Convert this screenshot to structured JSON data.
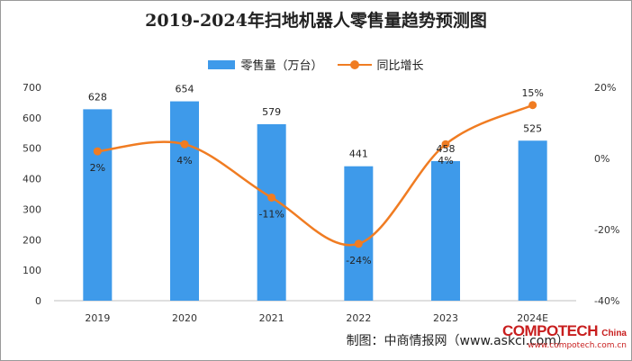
{
  "chart_data": {
    "type": "bar",
    "title": "2019-2024年扫地机器人零售量趋势预测图",
    "categories": [
      "2019",
      "2020",
      "2021",
      "2022",
      "2023",
      "2024E"
    ],
    "series": [
      {
        "name": "零售量（万台）",
        "type": "bar",
        "axis": "left",
        "values": [
          628,
          654,
          579,
          441,
          458,
          525
        ],
        "labels": [
          "628",
          "654",
          "579",
          "441",
          "458",
          "525"
        ]
      },
      {
        "name": "同比增长",
        "type": "line",
        "axis": "right",
        "values": [
          2,
          4,
          -11,
          -24,
          4,
          15
        ],
        "labels": [
          "2%",
          "4%",
          "-11%",
          "-24%",
          "4%",
          "15%"
        ]
      }
    ],
    "ylim_left": [
      0,
      700
    ],
    "yticks_left": [
      "0",
      "100",
      "200",
      "300",
      "400",
      "500",
      "600",
      "700"
    ],
    "ylim_right": [
      -40,
      20
    ],
    "yticks_right": [
      "-40%",
      "-20%",
      "0%",
      "20%"
    ],
    "legend_position": "top-center",
    "grid": false
  },
  "colors": {
    "bar": "#3e9aea",
    "line": "#f07c22"
  },
  "source_text": "制图：中商情报网（www.askci.com）",
  "brand": {
    "name": "COMPOTECH",
    "suffix": "China",
    "url": "www.compotech.com.cn"
  }
}
